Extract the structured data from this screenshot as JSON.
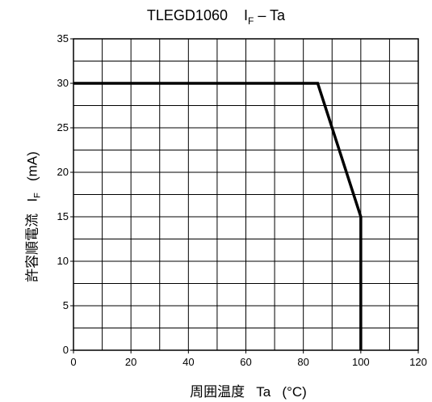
{
  "chart_data": {
    "type": "line",
    "title": {
      "main": "TLEGD1060",
      "symbol": "I",
      "subscript": "F",
      "suffix": " – Ta"
    },
    "xlabel": "周囲温度   Ta   (°C)",
    "ylabel": {
      "main": "許容順電流   I",
      "subscript": "F",
      "suffix": "   (mA)"
    },
    "xlim": [
      0,
      120
    ],
    "ylim": [
      0,
      35
    ],
    "x_ticks": [
      0,
      20,
      40,
      60,
      80,
      100,
      120
    ],
    "y_ticks": [
      0,
      5,
      10,
      15,
      20,
      25,
      30,
      35
    ],
    "grid": true,
    "x_grid_step": 10,
    "y_grid_step": 2.5,
    "series": [
      {
        "x": [
          0,
          85,
          100,
          100
        ],
        "y": [
          30,
          30,
          15,
          0
        ]
      }
    ],
    "line_color": "#000000"
  }
}
